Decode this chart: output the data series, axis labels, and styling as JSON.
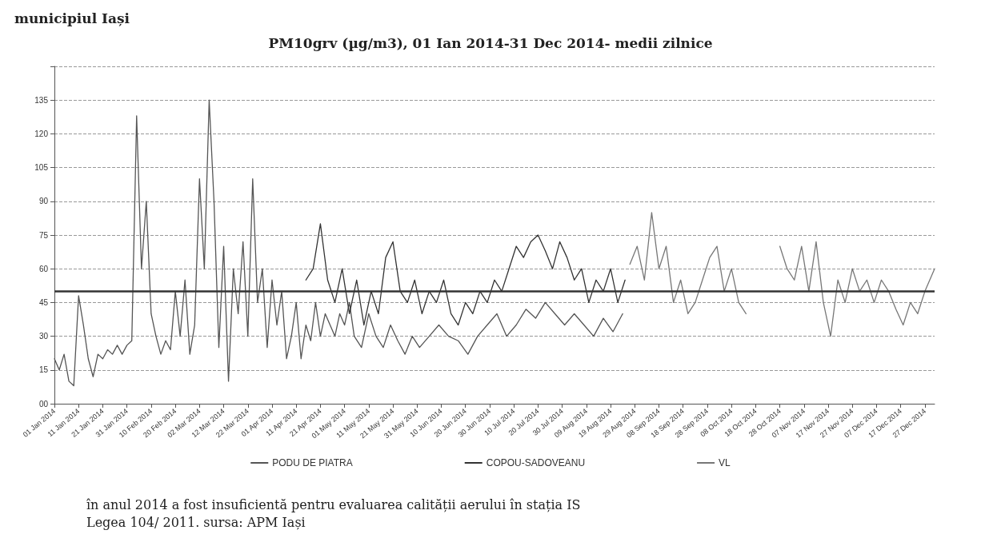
{
  "chart_data": {
    "type": "line",
    "title": "PM10grv (µg/m3), 01 Ian 2014-31 Dec 2014- medii zilnice",
    "annotations": [
      "municipiul Iași",
      "în anul 2014 a fost insuficientă pentru evaluarea calității aerului în stația IS",
      "Legea 104/ 2011. sursa: APM Iași"
    ],
    "xlim": [
      "2014-01-01",
      "2014-12-31"
    ],
    "xticks": [
      {
        "value": "2014-01-01",
        "label": "01 Jan 2014"
      },
      {
        "value": "2014-01-11",
        "label": "11 Jan 2014"
      },
      {
        "value": "2014-01-21",
        "label": "21 Jan 2014"
      },
      {
        "value": "2014-01-31",
        "label": "31 Jan 2014"
      },
      {
        "value": "2014-02-10",
        "label": "10 Feb 2014"
      },
      {
        "value": "2014-02-20",
        "label": "20 Feb 2014"
      },
      {
        "value": "2014-03-02",
        "label": "02 Mar 2014"
      },
      {
        "value": "2014-03-12",
        "label": "12 Mar 2014"
      },
      {
        "value": "2014-03-22",
        "label": "22 Mar 2014"
      },
      {
        "value": "2014-04-01",
        "label": "01 Apr 2014"
      },
      {
        "value": "2014-04-11",
        "label": "11 Apr 2014"
      },
      {
        "value": "2014-04-21",
        "label": "21 Apr 2014"
      },
      {
        "value": "2014-05-01",
        "label": "01 May 2014"
      },
      {
        "value": "2014-05-11",
        "label": "11 May 2014"
      },
      {
        "value": "2014-05-21",
        "label": "21 May 2014"
      },
      {
        "value": "2014-05-31",
        "label": "31 May 2014"
      },
      {
        "value": "2014-06-10",
        "label": "10 Jun 2014"
      },
      {
        "value": "2014-06-20",
        "label": "20 Jun 2014"
      },
      {
        "value": "2014-06-30",
        "label": "30 Jun 2014"
      },
      {
        "value": "2014-07-10",
        "label": "10 Jul 2014"
      },
      {
        "value": "2014-07-20",
        "label": "20 Jul 2014"
      },
      {
        "value": "2014-07-30",
        "label": "30 Jul 2014"
      },
      {
        "value": "2014-08-09",
        "label": "09 Aug 2014"
      },
      {
        "value": "2014-08-19",
        "label": "19 Aug 2014"
      },
      {
        "value": "2014-08-29",
        "label": "29 Aug 2014"
      },
      {
        "value": "2014-09-08",
        "label": "08 Sep 2014"
      },
      {
        "value": "2014-09-18",
        "label": "18 Sep 2014"
      },
      {
        "value": "2014-09-28",
        "label": "28 Sep 2014"
      },
      {
        "value": "2014-10-08",
        "label": "08 Oct 2014"
      },
      {
        "value": "2014-10-18",
        "label": "18 Oct 2014"
      },
      {
        "value": "2014-10-28",
        "label": "28 Oct 2014"
      },
      {
        "value": "2014-11-07",
        "label": "07 Nov 2014"
      },
      {
        "value": "2014-11-17",
        "label": "17 Nov 2014"
      },
      {
        "value": "2014-11-27",
        "label": "27 Nov 2014"
      },
      {
        "value": "2014-12-07",
        "label": "07 Dec 2014"
      },
      {
        "value": "2014-12-17",
        "label": "17 Dec 2014"
      },
      {
        "value": "2014-12-27",
        "label": "27 Dec 2014"
      }
    ],
    "ylim": [
      0,
      150
    ],
    "yticks": [
      {
        "value": 0,
        "label": "00"
      },
      15,
      30,
      45,
      60,
      75,
      90,
      105,
      120,
      135,
      {
        "value": 150,
        "label": null
      }
    ],
    "grid": "y",
    "legend": "bottom",
    "marker": "none",
    "line_style": "solid",
    "ref_lines": [
      {
        "axis": "y",
        "value": 50,
        "color": "#333333"
      }
    ],
    "series": [
      {
        "name": "PODU DE PIATRA",
        "color": "#555555",
        "x": [
          "2014-01-01",
          "2014-01-03",
          "2014-01-05",
          "2014-01-07",
          "2014-01-09",
          "2014-01-11",
          "2014-01-13",
          "2014-01-15",
          "2014-01-17",
          "2014-01-19",
          "2014-01-21",
          "2014-01-23",
          "2014-01-25",
          "2014-01-27",
          "2014-01-29",
          "2014-01-31",
          "2014-02-02",
          "2014-02-04",
          "2014-02-06",
          "2014-02-08",
          "2014-02-10",
          "2014-02-12",
          "2014-02-14",
          "2014-02-16",
          "2014-02-18",
          "2014-02-20",
          "2014-02-22",
          "2014-02-24",
          "2014-02-26",
          "2014-02-28",
          "2014-03-02",
          "2014-03-04",
          "2014-03-06",
          "2014-03-08",
          "2014-03-10",
          "2014-03-12",
          "2014-03-14",
          "2014-03-16",
          "2014-03-18",
          "2014-03-20",
          "2014-03-22",
          "2014-03-24",
          "2014-03-26",
          "2014-03-28",
          "2014-03-30",
          "2014-04-01",
          "2014-04-03",
          "2014-04-05",
          "2014-04-07",
          "2014-04-09",
          "2014-04-11",
          "2014-04-13",
          "2014-04-15",
          "2014-04-17",
          "2014-04-19",
          "2014-04-21",
          "2014-04-23",
          "2014-04-25",
          "2014-04-27",
          "2014-04-29",
          "2014-05-01",
          "2014-05-03",
          "2014-05-05",
          "2014-05-08",
          "2014-05-11",
          "2014-05-14",
          "2014-05-17",
          "2014-05-20",
          "2014-05-23",
          "2014-05-26",
          "2014-05-29",
          "2014-06-01",
          "2014-06-05",
          "2014-06-09",
          "2014-06-13",
          "2014-06-17",
          "2014-06-21",
          "2014-06-25",
          "2014-06-29",
          "2014-07-03",
          "2014-07-07",
          "2014-07-11",
          "2014-07-15",
          "2014-07-19",
          "2014-07-23",
          "2014-07-27",
          "2014-07-31",
          "2014-08-04",
          "2014-08-08",
          "2014-08-12",
          "2014-08-16",
          "2014-08-20",
          "2014-08-24"
        ],
        "values": [
          20,
          15,
          22,
          10,
          8,
          48,
          35,
          20,
          12,
          22,
          20,
          24,
          22,
          26,
          22,
          26,
          28,
          128,
          60,
          90,
          40,
          30,
          22,
          28,
          24,
          50,
          30,
          55,
          22,
          35,
          100,
          60,
          135,
          90,
          25,
          70,
          10,
          60,
          40,
          72,
          30,
          100,
          45,
          60,
          25,
          55,
          35,
          50,
          20,
          30,
          45,
          20,
          35,
          28,
          45,
          30,
          40,
          35,
          30,
          40,
          35,
          45,
          30,
          25,
          40,
          30,
          25,
          35,
          28,
          22,
          30,
          25,
          30,
          35,
          30,
          28,
          22,
          30,
          35,
          40,
          30,
          35,
          42,
          38,
          45,
          40,
          35,
          40,
          35,
          30,
          38,
          32,
          40
        ]
      },
      {
        "name": "COPOU-SADOVEANU",
        "color": "#333333",
        "x": [
          "2014-04-15",
          "2014-04-18",
          "2014-04-21",
          "2014-04-24",
          "2014-04-27",
          "2014-04-30",
          "2014-05-03",
          "2014-05-06",
          "2014-05-09",
          "2014-05-12",
          "2014-05-15",
          "2014-05-18",
          "2014-05-21",
          "2014-05-24",
          "2014-05-27",
          "2014-05-30",
          "2014-06-02",
          "2014-06-05",
          "2014-06-08",
          "2014-06-11",
          "2014-06-14",
          "2014-06-17",
          "2014-06-20",
          "2014-06-23",
          "2014-06-26",
          "2014-06-29",
          "2014-07-02",
          "2014-07-05",
          "2014-07-08",
          "2014-07-11",
          "2014-07-14",
          "2014-07-17",
          "2014-07-20",
          "2014-07-23",
          "2014-07-26",
          "2014-07-29",
          "2014-08-01",
          "2014-08-04",
          "2014-08-07",
          "2014-08-10",
          "2014-08-13",
          "2014-08-16",
          "2014-08-19",
          "2014-08-22",
          "2014-08-25"
        ],
        "values": [
          55,
          60,
          80,
          55,
          45,
          60,
          40,
          55,
          35,
          50,
          40,
          65,
          72,
          50,
          45,
          55,
          40,
          50,
          45,
          55,
          40,
          35,
          45,
          40,
          50,
          45,
          55,
          50,
          60,
          70,
          65,
          72,
          75,
          68,
          60,
          72,
          65,
          55,
          60,
          45,
          55,
          50,
          60,
          45,
          55
        ]
      },
      {
        "name": "VL",
        "color": "#777777",
        "x": [
          "2014-08-27",
          "2014-08-30",
          "2014-09-02",
          "2014-09-05",
          "2014-09-08",
          "2014-09-11",
          "2014-09-14",
          "2014-09-17",
          "2014-09-20",
          "2014-09-23",
          "2014-09-26",
          "2014-09-29",
          "2014-10-02",
          "2014-10-05",
          "2014-10-08",
          "2014-10-11",
          "2014-10-14",
          "2014-10-20",
          "2014-10-28",
          "2014-10-31",
          "2014-11-03",
          "2014-11-06",
          "2014-11-09",
          "2014-11-12",
          "2014-11-15",
          "2014-11-18",
          "2014-11-21",
          "2014-11-24",
          "2014-11-27",
          "2014-11-30",
          "2014-12-03",
          "2014-12-06",
          "2014-12-09",
          "2014-12-12",
          "2014-12-15",
          "2014-12-18",
          "2014-12-21",
          "2014-12-24",
          "2014-12-27",
          "2014-12-31"
        ],
        "values": [
          62,
          70,
          55,
          85,
          60,
          70,
          45,
          55,
          40,
          45,
          55,
          65,
          70,
          50,
          60,
          45,
          40,
          null,
          70,
          60,
          55,
          70,
          50,
          72,
          45,
          30,
          55,
          45,
          60,
          50,
          55,
          45,
          55,
          50,
          42,
          35,
          45,
          40,
          50,
          60
        ]
      }
    ]
  }
}
